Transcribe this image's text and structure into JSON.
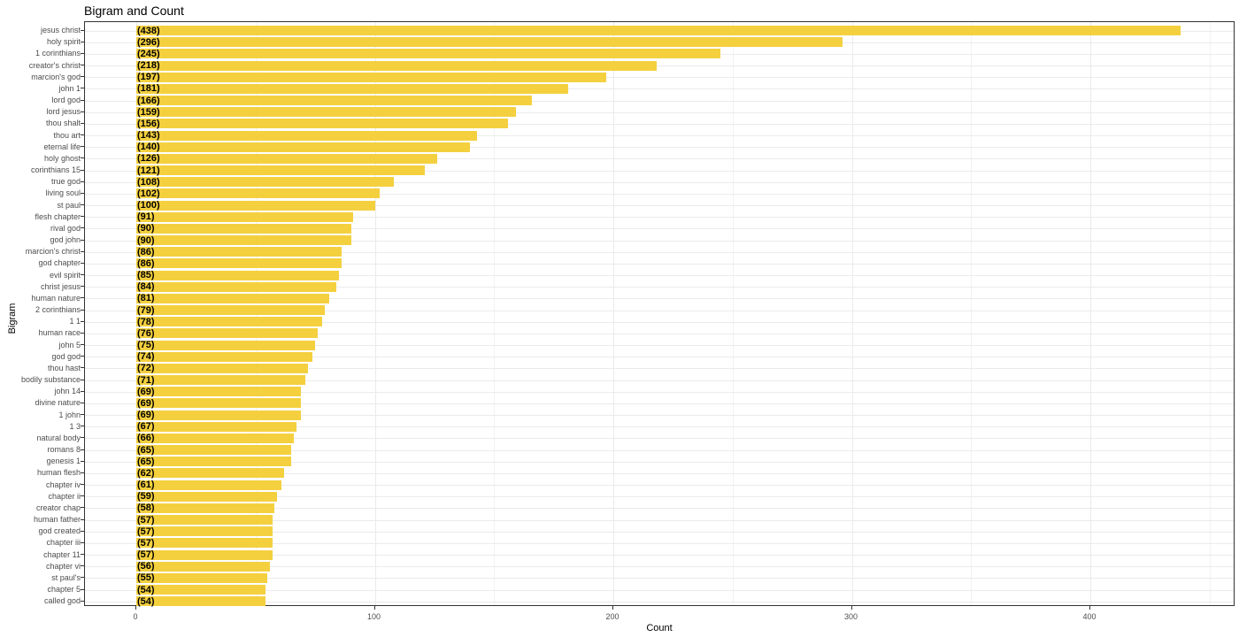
{
  "chart_data": {
    "type": "bar",
    "orientation": "horizontal",
    "title": "Bigram and Count",
    "xlabel": "Count",
    "ylabel": "Bigram",
    "xlim": [
      -22,
      460
    ],
    "x_ticks": [
      0,
      100,
      200,
      300,
      400
    ],
    "grid": true,
    "bar_color": "#f4d03f",
    "categories": [
      "jesus christ",
      "holy spirit",
      "1 corinthians",
      "creator's christ",
      "marcion's god",
      "john 1",
      "lord god",
      "lord jesus",
      "thou shalt",
      "thou art",
      "eternal life",
      "holy ghost",
      "corinthians 15",
      "true god",
      "living soul",
      "st paul",
      "flesh chapter",
      "rival god",
      "god john",
      "marcion's christ",
      "god chapter",
      "evil spirit",
      "christ jesus",
      "human nature",
      "2 corinthians",
      "1 1",
      "human race",
      "john 5",
      "god god",
      "thou hast",
      "bodily substance",
      "john 14",
      "divine nature",
      "1 john",
      "1 3",
      "natural body",
      "romans 8",
      "genesis 1",
      "human flesh",
      "chapter iv",
      "chapter ii",
      "creator chap",
      "human father",
      "god created",
      "chapter iii",
      "chapter 11",
      "chapter vi",
      "st paul's",
      "chapter 5",
      "called god"
    ],
    "values": [
      438,
      296,
      245,
      218,
      197,
      181,
      166,
      159,
      156,
      143,
      140,
      126,
      121,
      108,
      102,
      100,
      91,
      90,
      90,
      86,
      86,
      85,
      84,
      81,
      79,
      78,
      76,
      75,
      74,
      72,
      71,
      69,
      69,
      69,
      67,
      66,
      65,
      65,
      62,
      61,
      59,
      58,
      57,
      57,
      57,
      57,
      56,
      55,
      54,
      54
    ],
    "value_labels": [
      "(438)",
      "(296)",
      "(245)",
      "(218)",
      "(197)",
      "(181)",
      "(166)",
      "(159)",
      "(156)",
      "(143)",
      "(140)",
      "(126)",
      "(121)",
      "(108)",
      "(102)",
      "(100)",
      "(91)",
      "(90)",
      "(90)",
      "(86)",
      "(86)",
      "(85)",
      "(84)",
      "(81)",
      "(79)",
      "(78)",
      "(76)",
      "(75)",
      "(74)",
      "(72)",
      "(71)",
      "(69)",
      "(69)",
      "(69)",
      "(67)",
      "(66)",
      "(65)",
      "(65)",
      "(62)",
      "(61)",
      "(59)",
      "(58)",
      "(57)",
      "(57)",
      "(57)",
      "(57)",
      "(56)",
      "(55)",
      "(54)",
      "(54)"
    ],
    "legend": null
  }
}
